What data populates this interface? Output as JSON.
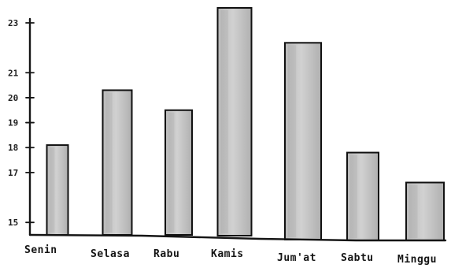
{
  "chart_data": {
    "type": "bar",
    "title": "",
    "xlabel": "",
    "ylabel": "",
    "categories": [
      "Senin",
      "Selasa",
      "Rabu",
      "Kamis",
      "Jum'at",
      "Sabtu",
      "Minggu"
    ],
    "values": [
      18.1,
      20.3,
      19.5,
      23.6,
      22.2,
      17.8,
      16.6
    ],
    "yticks": [
      15,
      17,
      18,
      19,
      20,
      21,
      23
    ],
    "yticklabels": [
      "15",
      "17",
      "18",
      "19",
      "20",
      "21",
      "23"
    ],
    "ylim": [
      14.5,
      23.6
    ],
    "grid": false,
    "legend": "none",
    "bar_fill": "#c8c8c8",
    "line_color": "#151515"
  }
}
